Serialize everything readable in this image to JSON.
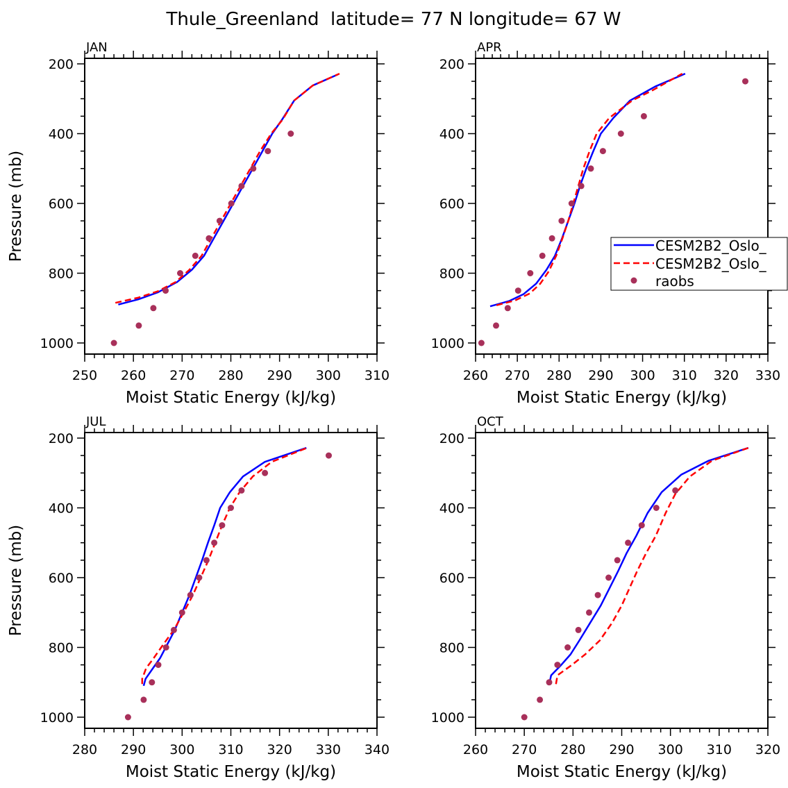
{
  "figure": {
    "title": "Thule_Greenland  latitude= 77 N longitude= 67 W"
  },
  "legend": {
    "entries": [
      "CESM2B2_Oslo_",
      "CESM2B2_Oslo_",
      "raobs"
    ]
  },
  "chart_data": [
    {
      "type": "line",
      "panel": "JAN",
      "title": "JAN",
      "xlabel": "Moist Static Energy (kJ/kg)",
      "ylabel": "Pressure (mb)",
      "xlim": [
        250,
        310
      ],
      "ylim": [
        1000,
        200
      ],
      "xticks": [
        250,
        260,
        270,
        280,
        290,
        300,
        310
      ],
      "yticks": [
        200,
        400,
        600,
        800,
        1000
      ],
      "series": [
        {
          "name": "CESM2B2_Oslo_",
          "style": "solid",
          "color": "#0000ff",
          "points": [
            [
              256.9,
              890
            ],
            [
              261,
              875
            ],
            [
              265,
              855
            ],
            [
              269,
              825
            ],
            [
              272,
              790
            ],
            [
              274.5,
              750
            ],
            [
              276.5,
              700
            ],
            [
              278.5,
              650
            ],
            [
              280.5,
              600
            ],
            [
              282.5,
              550
            ],
            [
              284.5,
              500
            ],
            [
              286.5,
              450
            ],
            [
              288.5,
              400
            ],
            [
              290.5,
              360
            ],
            [
              293,
              305
            ],
            [
              296.8,
              262
            ],
            [
              302,
              230
            ]
          ]
        },
        {
          "name": "CESM2B2_Oslo_",
          "style": "dashed",
          "color": "#ff0000",
          "points": [
            [
              256.3,
              885
            ],
            [
              261,
              870
            ],
            [
              265,
              852
            ],
            [
              268.7,
              825
            ],
            [
              271.5,
              790
            ],
            [
              274,
              750
            ],
            [
              276,
              700
            ],
            [
              278,
              650
            ],
            [
              280,
              600
            ],
            [
              282,
              550
            ],
            [
              284,
              500
            ],
            [
              286,
              450
            ],
            [
              288.3,
              400
            ],
            [
              290.6,
              360
            ],
            [
              293,
              305
            ],
            [
              296.8,
              262
            ],
            [
              302.3,
              228
            ]
          ]
        }
      ],
      "points": {
        "name": "raobs",
        "color": "#a8305a",
        "values": [
          [
            256,
            1000
          ],
          [
            261.1,
            950
          ],
          [
            264.1,
            900
          ],
          [
            266.6,
            850
          ],
          [
            269.6,
            800
          ],
          [
            272.7,
            750
          ],
          [
            275.5,
            700
          ],
          [
            277.7,
            650
          ],
          [
            280.1,
            600
          ],
          [
            282.2,
            550
          ],
          [
            284.6,
            500
          ],
          [
            287.6,
            450
          ],
          [
            292.3,
            400
          ]
        ]
      }
    },
    {
      "type": "line",
      "panel": "APR",
      "title": "APR",
      "xlabel": "Moist Static Energy (kJ/kg)",
      "ylabel": "",
      "xlim": [
        260,
        330
      ],
      "ylim": [
        1000,
        200
      ],
      "xticks": [
        260,
        270,
        280,
        290,
        300,
        310,
        320,
        330
      ],
      "yticks": [
        200,
        400,
        600,
        800,
        1000
      ],
      "series": [
        {
          "name": "CESM2B2_Oslo_",
          "style": "solid",
          "color": "#0000ff",
          "points": [
            [
              263.5,
              895
            ],
            [
              268,
              880
            ],
            [
              271.5,
              860
            ],
            [
              274.5,
              830
            ],
            [
              277,
              790
            ],
            [
              279,
              750
            ],
            [
              280.7,
              700
            ],
            [
              282.2,
              650
            ],
            [
              283.7,
              600
            ],
            [
              285,
              550
            ],
            [
              286.5,
              500
            ],
            [
              288.2,
              450
            ],
            [
              290,
              400
            ],
            [
              293,
              355
            ],
            [
              297,
              305
            ],
            [
              303,
              265
            ],
            [
              310.2,
              228
            ]
          ]
        },
        {
          "name": "CESM2B2_Oslo_",
          "style": "dashed",
          "color": "#ff0000",
          "points": [
            [
              265,
              892
            ],
            [
              269.5,
              878
            ],
            [
              273,
              858
            ],
            [
              275.5,
              830
            ],
            [
              277.5,
              795
            ],
            [
              279.3,
              750
            ],
            [
              280.8,
              700
            ],
            [
              282.2,
              650
            ],
            [
              283.4,
              600
            ],
            [
              284.6,
              550
            ],
            [
              285.8,
              500
            ],
            [
              287.3,
              450
            ],
            [
              289,
              400
            ],
            [
              292,
              355
            ],
            [
              297.5,
              305
            ],
            [
              302.5,
              275
            ],
            [
              309.5,
              228
            ]
          ]
        }
      ],
      "points": {
        "name": "raobs",
        "color": "#a8305a",
        "values": [
          [
            261.4,
            1000
          ],
          [
            264.9,
            950
          ],
          [
            267.7,
            900
          ],
          [
            270.2,
            850
          ],
          [
            273.1,
            800
          ],
          [
            276,
            750
          ],
          [
            278.3,
            700
          ],
          [
            280.6,
            650
          ],
          [
            283,
            600
          ],
          [
            285.3,
            550
          ],
          [
            287.6,
            500
          ],
          [
            290.5,
            450
          ],
          [
            294.8,
            400
          ],
          [
            300.3,
            350
          ],
          [
            324.6,
            250
          ]
        ]
      }
    },
    {
      "type": "line",
      "panel": "JUL",
      "title": "JUL",
      "xlabel": "Moist Static Energy (kJ/kg)",
      "ylabel": "Pressure (mb)",
      "xlim": [
        280,
        340
      ],
      "ylim": [
        1000,
        200
      ],
      "xticks": [
        280,
        290,
        300,
        310,
        320,
        330,
        340
      ],
      "yticks": [
        200,
        400,
        600,
        800,
        1000
      ],
      "series": [
        {
          "name": "CESM2B2_Oslo_",
          "style": "solid",
          "color": "#0000ff",
          "points": [
            [
              292.1,
              910
            ],
            [
              292.5,
              890
            ],
            [
              294,
              860
            ],
            [
              295.5,
              830
            ],
            [
              297,
              790
            ],
            [
              298.5,
              750
            ],
            [
              300,
              700
            ],
            [
              301.5,
              650
            ],
            [
              302.8,
              600
            ],
            [
              304.1,
              550
            ],
            [
              305.3,
              500
            ],
            [
              306.6,
              450
            ],
            [
              307.8,
              400
            ],
            [
              309.8,
              355
            ],
            [
              312.5,
              310
            ],
            [
              317,
              268
            ],
            [
              325.5,
              228
            ]
          ]
        },
        {
          "name": "CESM2B2_Oslo_",
          "style": "dashed",
          "color": "#ff0000",
          "points": [
            [
              291.8,
              905
            ],
            [
              291.8,
              890
            ],
            [
              292.6,
              860
            ],
            [
              294.2,
              830
            ],
            [
              296.2,
              790
            ],
            [
              298.3,
              750
            ],
            [
              300.3,
              700
            ],
            [
              302.2,
              650
            ],
            [
              303.8,
              600
            ],
            [
              305.4,
              550
            ],
            [
              306.8,
              500
            ],
            [
              308.2,
              450
            ],
            [
              309.8,
              400
            ],
            [
              311.8,
              355
            ],
            [
              314.5,
              310
            ],
            [
              318.4,
              268
            ],
            [
              326,
              226
            ]
          ]
        }
      ],
      "points": {
        "name": "raobs",
        "color": "#a8305a",
        "values": [
          [
            288.9,
            1000
          ],
          [
            292.1,
            950
          ],
          [
            293.8,
            900
          ],
          [
            295.1,
            850
          ],
          [
            296.7,
            800
          ],
          [
            298.3,
            750
          ],
          [
            300,
            700
          ],
          [
            301.7,
            650
          ],
          [
            303.5,
            600
          ],
          [
            305,
            550
          ],
          [
            306.6,
            500
          ],
          [
            308.2,
            450
          ],
          [
            310,
            400
          ],
          [
            312.2,
            350
          ],
          [
            317,
            300
          ],
          [
            330.1,
            250
          ]
        ]
      }
    },
    {
      "type": "line",
      "panel": "OCT",
      "title": "OCT",
      "xlabel": "Moist Static Energy (kJ/kg)",
      "ylabel": "",
      "xlim": [
        260,
        320
      ],
      "ylim": [
        1000,
        200
      ],
      "xticks": [
        260,
        270,
        280,
        290,
        300,
        310,
        320
      ],
      "yticks": [
        200,
        400,
        600,
        800,
        1000
      ],
      "series": [
        {
          "name": "CESM2B2_Oslo_",
          "style": "solid",
          "color": "#0000ff",
          "points": [
            [
              275.2,
              900
            ],
            [
              275.5,
              880
            ],
            [
              277.6,
              850
            ],
            [
              279.5,
              820
            ],
            [
              281.3,
              780
            ],
            [
              283.5,
              730
            ],
            [
              285.7,
              680
            ],
            [
              287.5,
              630
            ],
            [
              289.3,
              580
            ],
            [
              291,
              530
            ],
            [
              293,
              480
            ],
            [
              295.3,
              415
            ],
            [
              298.2,
              355
            ],
            [
              302.2,
              305
            ],
            [
              307.8,
              265
            ],
            [
              316,
              228
            ]
          ]
        },
        {
          "name": "CESM2B2_Oslo_",
          "style": "dashed",
          "color": "#ff0000",
          "points": [
            [
              276.5,
              905
            ],
            [
              276.8,
              880
            ],
            [
              279.8,
              850
            ],
            [
              282.5,
              820
            ],
            [
              285.5,
              780
            ],
            [
              288,
              730
            ],
            [
              290,
              680
            ],
            [
              291.6,
              630
            ],
            [
              293.2,
              580
            ],
            [
              295,
              530
            ],
            [
              297,
              480
            ],
            [
              299,
              415
            ],
            [
              301,
              360
            ],
            [
              304,
              310
            ],
            [
              308.5,
              265
            ],
            [
              316,
              228
            ]
          ]
        }
      ],
      "points": {
        "name": "raobs",
        "color": "#a8305a",
        "values": [
          [
            270,
            1000
          ],
          [
            273.2,
            950
          ],
          [
            275.1,
            900
          ],
          [
            276.8,
            850
          ],
          [
            278.9,
            800
          ],
          [
            281.1,
            750
          ],
          [
            283.3,
            700
          ],
          [
            285.1,
            650
          ],
          [
            287.3,
            600
          ],
          [
            289.1,
            550
          ],
          [
            291.3,
            500
          ],
          [
            294.1,
            450
          ],
          [
            297.1,
            400
          ],
          [
            301,
            350
          ]
        ]
      }
    }
  ]
}
